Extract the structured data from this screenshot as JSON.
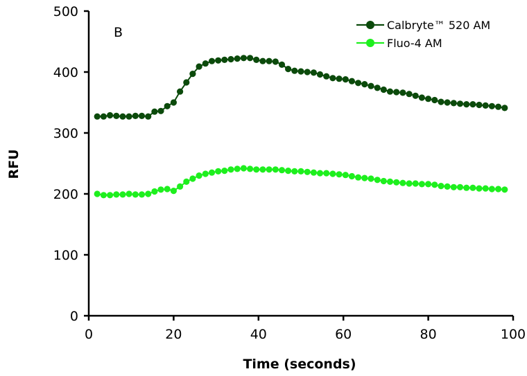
{
  "chart_data": {
    "type": "line",
    "panel_label": "B",
    "title": "",
    "xlabel": "Time (seconds)",
    "ylabel": "RFU",
    "xlim": [
      0,
      100
    ],
    "ylim": [
      0,
      500
    ],
    "x_ticks": [
      0,
      20,
      40,
      60,
      80,
      100
    ],
    "y_ticks": [
      0,
      100,
      200,
      300,
      400,
      500
    ],
    "grid": false,
    "legend_position": "top-right",
    "x": [
      2,
      3.5,
      5,
      6.5,
      8,
      9.5,
      11,
      12.5,
      14,
      15.5,
      17,
      18.5,
      20,
      21.5,
      23,
      24.5,
      26,
      27.5,
      29,
      30.5,
      32,
      33.5,
      35,
      36.5,
      38,
      39.5,
      41,
      42.5,
      44,
      45.5,
      47,
      48.5,
      50,
      51.5,
      53,
      54.5,
      56,
      57.5,
      59,
      60.5,
      62,
      63.5,
      65,
      66.5,
      68,
      69.5,
      71,
      72.5,
      74,
      75.5,
      77,
      78.5,
      80,
      81.5,
      83,
      84.5,
      86,
      87.5,
      89,
      90.5,
      92,
      93.5,
      95,
      96.5,
      98
    ],
    "series": [
      {
        "name": "Calbryte™ 520 AM",
        "color": "#0b4a0b",
        "values": [
          327,
          327,
          329,
          328,
          327,
          327,
          328,
          328,
          327,
          335,
          336,
          344,
          350,
          368,
          383,
          397,
          409,
          414,
          418,
          419,
          420,
          421,
          422,
          423,
          423,
          420,
          418,
          418,
          417,
          412,
          405,
          402,
          401,
          400,
          399,
          396,
          393,
          390,
          389,
          388,
          385,
          382,
          380,
          377,
          374,
          371,
          368,
          367,
          366,
          364,
          361,
          358,
          356,
          354,
          351,
          350,
          349,
          348,
          347,
          347,
          346,
          345,
          344,
          343,
          341
        ]
      },
      {
        "name": "Fluo-4 AM",
        "color": "#1eef1e",
        "values": [
          200,
          198,
          198,
          199,
          199,
          200,
          199,
          199,
          200,
          204,
          207,
          208,
          205,
          212,
          220,
          225,
          230,
          233,
          235,
          237,
          238,
          240,
          241,
          242,
          241,
          240,
          240,
          240,
          240,
          239,
          238,
          237,
          237,
          236,
          235,
          234,
          234,
          233,
          232,
          231,
          229,
          227,
          226,
          225,
          223,
          221,
          220,
          219,
          218,
          217,
          217,
          216,
          216,
          215,
          213,
          212,
          211,
          211,
          210,
          210,
          209,
          209,
          208,
          208,
          207
        ]
      }
    ]
  }
}
